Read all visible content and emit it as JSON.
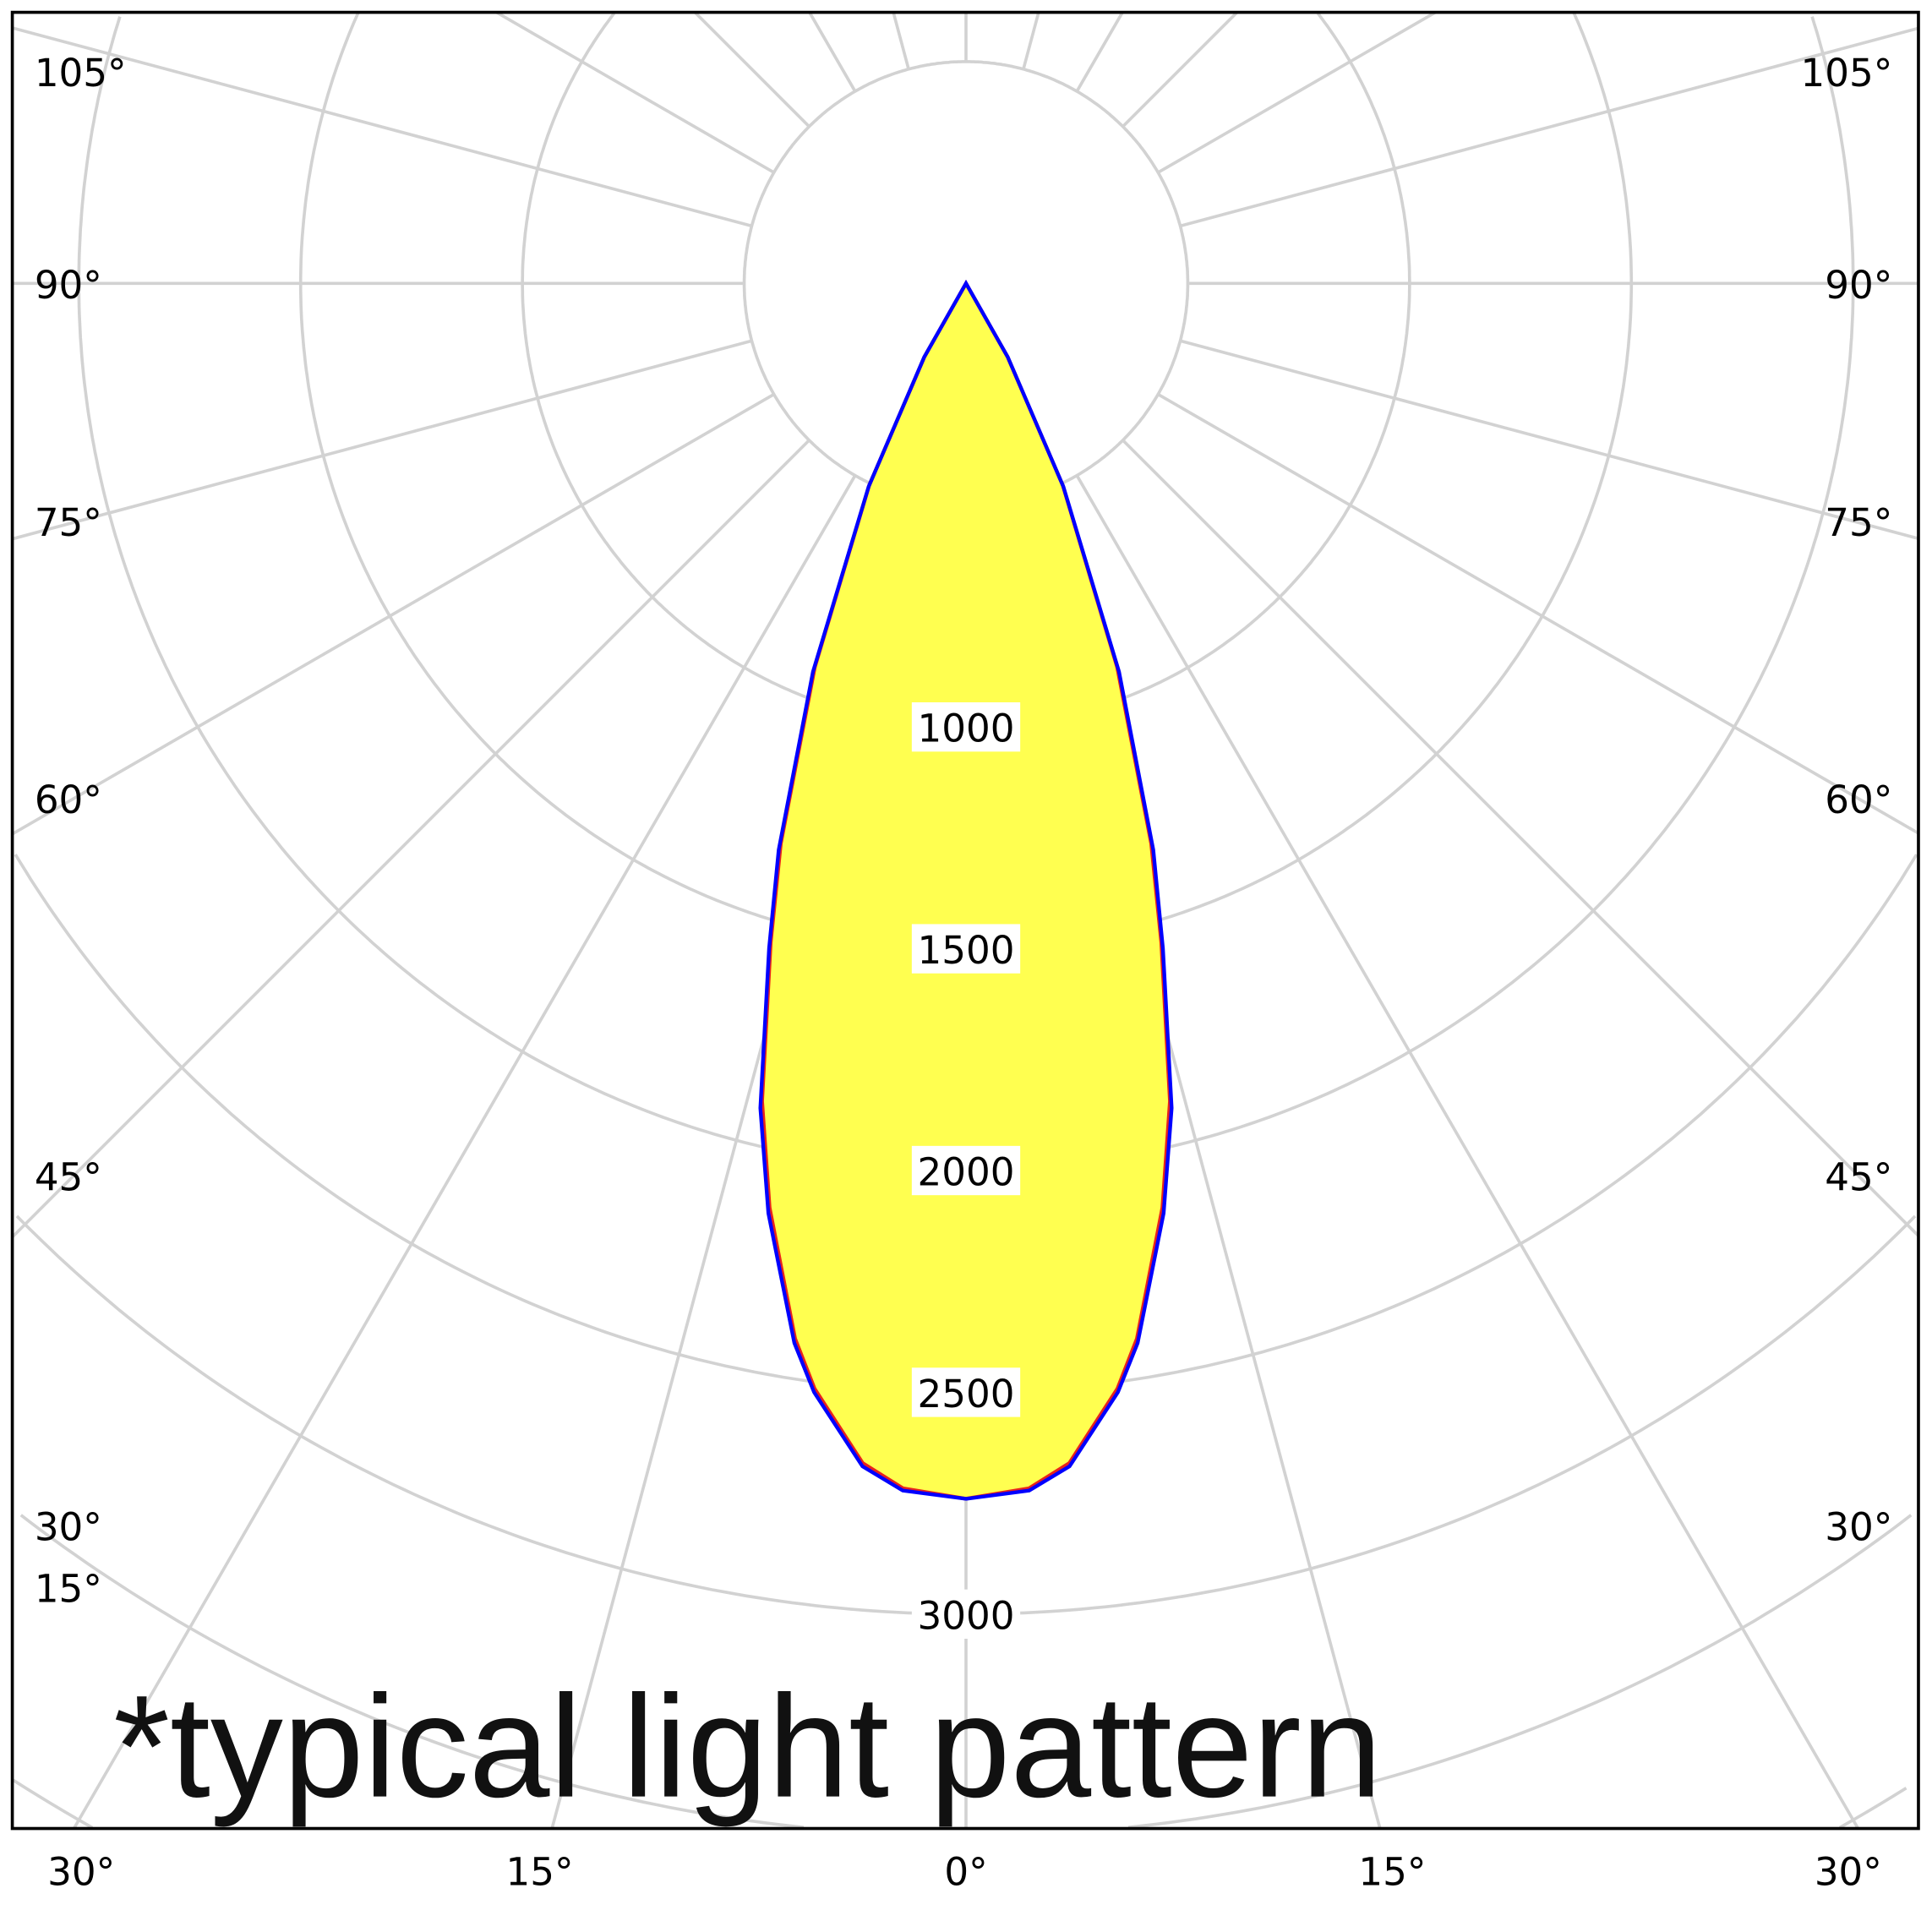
{
  "chart_data": {
    "type": "polar-line",
    "angle_unit": "degrees",
    "angle_tick_labels_left": [
      "105°",
      "90°",
      "75°",
      "60°",
      "45°",
      "30°",
      "15°"
    ],
    "angle_tick_labels_bottom": [
      "30°",
      "15°",
      "0°",
      "15°",
      "30°"
    ],
    "angle_tick_labels_right": [
      "105°",
      "90°",
      "75°",
      "60°",
      "45°",
      "30°"
    ],
    "radial_tick_labels": [
      "1000",
      "1500",
      "2000",
      "2500",
      "3000"
    ],
    "radial_ticks": [
      1000,
      1500,
      2000,
      2500,
      3000
    ],
    "rlim": [
      0,
      4000
    ],
    "grid": true,
    "fill_color": "#ffff50",
    "series": [
      {
        "color": "#e8231c",
        "angles": [
          0,
          3,
          5,
          7.8,
          9.2,
          12,
          14,
          16.5,
          18.3,
          21.5,
          25.6,
          29.5,
          33
        ],
        "values": [
          2740,
          2720,
          2670,
          2515,
          2410,
          2130,
          1900,
          1550,
          1330,
          930,
          505,
          190,
          0
        ]
      },
      {
        "color": "#0000ff",
        "angles": [
          0,
          3,
          5,
          7.8,
          9.2,
          12,
          14,
          16.5,
          18.3,
          21.5,
          25.6,
          29.5,
          33
        ],
        "values": [
          2740,
          2725,
          2677,
          2523,
          2420,
          2143,
          1916,
          1563,
          1345,
          941,
          508,
          191,
          0
        ]
      }
    ],
    "annotation": "*typical light pattern"
  }
}
